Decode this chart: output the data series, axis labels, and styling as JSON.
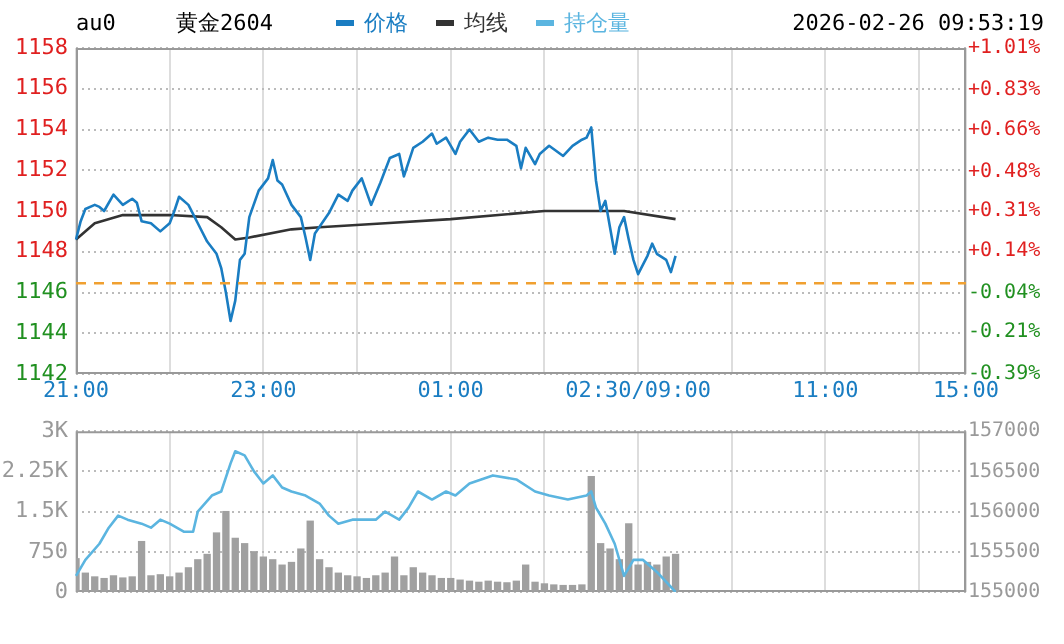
{
  "chart_data": [
    {
      "type": "line",
      "title": "黄金2604",
      "subtitle": "au0",
      "annotations": [
        "2026-02-26 09:53:19"
      ],
      "legend": "top",
      "grid": true,
      "marker": "none",
      "line_style": "solid",
      "categories": [
        "21:00",
        null,
        null,
        null,
        null,
        null,
        null,
        null,
        null,
        null,
        null,
        null,
        null,
        null,
        null,
        null,
        null,
        null,
        null,
        null,
        null,
        null,
        null,
        null,
        null,
        null,
        null,
        null,
        null,
        null,
        null,
        null,
        null,
        null,
        null,
        null,
        null,
        null,
        null,
        null,
        "23:00",
        null,
        null,
        null,
        null,
        null,
        null,
        null,
        null,
        null,
        null,
        null,
        null,
        null,
        null,
        null,
        null,
        null,
        null,
        null,
        null,
        null,
        null,
        null,
        null,
        null,
        null,
        null,
        null,
        null,
        null,
        null,
        null,
        null,
        null,
        null,
        null,
        null,
        null,
        null,
        "01:00",
        null,
        null,
        null,
        null,
        null,
        null,
        null,
        null,
        null,
        null,
        null,
        null,
        null,
        null,
        null,
        null,
        null,
        null,
        null,
        null,
        null,
        null,
        null,
        null,
        null,
        null,
        null,
        null,
        null,
        null,
        null,
        null,
        null,
        null,
        null,
        null,
        null,
        null,
        null,
        "02:30/09:00",
        null,
        null,
        null,
        null,
        null,
        null,
        null,
        null,
        null,
        null,
        null,
        null,
        null,
        null,
        null,
        null,
        null,
        null,
        null,
        null,
        null,
        null,
        null,
        null,
        null,
        null,
        null,
        null,
        null,
        null,
        null,
        null,
        null,
        null,
        null,
        null,
        null,
        null,
        null,
        "11:00",
        null,
        null,
        null,
        null,
        null,
        null,
        null,
        null,
        null,
        null,
        null,
        null,
        null,
        null,
        null,
        null,
        null,
        null,
        null,
        null,
        null,
        null,
        null,
        null,
        null,
        null,
        null,
        null,
        null,
        "15:00"
      ],
      "ylim": [
        1142,
        1158
      ],
      "yticks": [
        1142,
        1144,
        1146,
        1148,
        1150,
        1152,
        1154,
        1156,
        1158
      ],
      "y2lim": [
        -0.39,
        1.01
      ],
      "y2ticks": [
        {
          "value": -0.39,
          "label": "-0.39%"
        },
        {
          "value": -0.21,
          "label": "-0.21%"
        },
        {
          "value": -0.04,
          "label": "-0.04%"
        },
        {
          "value": 0.14,
          "label": "+0.14%"
        },
        {
          "value": 0.31,
          "label": "+0.31%"
        },
        {
          "value": 0.48,
          "label": "+0.48%"
        },
        {
          "value": 0.66,
          "label": "+0.66%"
        },
        {
          "value": 0.83,
          "label": "+0.83%"
        },
        {
          "value": 1.01,
          "label": "+1.01%"
        }
      ],
      "ref_lines": [
        {
          "axis": "y2",
          "value": 0,
          "color": "#f0a030",
          "line_style": "dashed"
        }
      ],
      "series": [
        {
          "name": "价格",
          "color": "#1a7dc2",
          "values": [
            1148.6,
            1149.5,
            1150.1,
            null,
            1150.3,
            1150.2,
            1150,
            null,
            1150.8,
            null,
            1150.3,
            null,
            1150.6,
            1150.4,
            1149.5,
            null,
            1149.4,
            null,
            1149,
            null,
            1149.4,
            1150,
            1150.7,
            null,
            1150.3,
            null,
            1149.4,
            null,
            1148.5,
            null,
            1147.9,
            1147.2,
            1146,
            1144.6,
            1145.6,
            1147.6,
            1147.9,
            1149.7,
            null,
            1151,
            null,
            1151.6,
            1152.5,
            1151.5,
            1151.3,
            null,
            1150.3,
            null,
            1149.7,
            1148.7,
            1147.6,
            1148.9,
            null,
            null,
            1149.9,
            null,
            1150.8,
            null,
            1150.5,
            1151,
            null,
            1151.6,
            null,
            1150.3,
            null,
            1151.4,
            null,
            1152.6,
            null,
            1152.8,
            1151.7,
            null,
            1153.1,
            null,
            1153.4,
            null,
            1153.8,
            1153.3,
            null,
            1153.6,
            null,
            1152.8,
            1153.4,
            null,
            1154,
            null,
            1153.4,
            null,
            1153.6,
            null,
            1153.5,
            null,
            1153.5,
            null,
            1153.2,
            1152.1,
            1153.1,
            null,
            1152.3,
            1152.8,
            null,
            1153.2,
            null,
            null,
            1152.7,
            null,
            1153.2,
            null,
            1153.5,
            1153.6,
            1154.1,
            1151.5,
            1150,
            1150.5,
            1149.2,
            1147.9,
            1149.2,
            1149.7,
            1148.6,
            1147.6,
            1146.9,
            null,
            1147.8,
            1148.4,
            1147.9,
            null,
            1147.6,
            1147,
            1147.8,
            null,
            null,
            null,
            null,
            null,
            null,
            null,
            null,
            null,
            null,
            null,
            null,
            null,
            null,
            null,
            null,
            null,
            null,
            null,
            null,
            null,
            null,
            null,
            null,
            null,
            null,
            null,
            null,
            null,
            null,
            null,
            null,
            null,
            null,
            null,
            null,
            null,
            null,
            null,
            null,
            null,
            null,
            null,
            null,
            null,
            null,
            null,
            null,
            null,
            null,
            null,
            null,
            null,
            null,
            null,
            null,
            null,
            null,
            null,
            null,
            null,
            null
          ]
        },
        {
          "name": "均线",
          "color": "#333333",
          "values": [
            1148.6,
            null,
            null,
            null,
            1149.4,
            null,
            null,
            null,
            null,
            null,
            1149.8,
            null,
            null,
            null,
            null,
            null,
            null,
            null,
            null,
            null,
            1149.8,
            null,
            null,
            null,
            null,
            null,
            null,
            null,
            1149.7,
            null,
            null,
            1149.2,
            null,
            null,
            1148.6,
            null,
            null,
            1148.7,
            null,
            null,
            null,
            null,
            null,
            null,
            null,
            null,
            1149.1,
            null,
            null,
            null,
            null,
            null,
            1149.2,
            null,
            null,
            null,
            null,
            null,
            null,
            null,
            null,
            null,
            null,
            null,
            null,
            null,
            1149.4,
            null,
            null,
            null,
            null,
            null,
            null,
            null,
            null,
            null,
            null,
            null,
            null,
            null,
            1149.6,
            null,
            null,
            null,
            null,
            null,
            null,
            null,
            null,
            null,
            null,
            null,
            null,
            null,
            null,
            null,
            null,
            null,
            null,
            null,
            1150,
            null,
            null,
            null,
            null,
            null,
            null,
            null,
            null,
            null,
            1150,
            null,
            null,
            null,
            null,
            null,
            null,
            1150,
            null,
            null,
            null,
            null,
            null,
            null,
            null,
            null,
            null,
            null,
            1149.6,
            null,
            null,
            null,
            null,
            null,
            null,
            null,
            null,
            null,
            null,
            null,
            null,
            null,
            null,
            null,
            null,
            null,
            null,
            null,
            null,
            null,
            null,
            null,
            null,
            null,
            null,
            null,
            null,
            null,
            null,
            null,
            null,
            null,
            null,
            null,
            null,
            null,
            null,
            null,
            null,
            null,
            null,
            null,
            null,
            null,
            null,
            null,
            null,
            null,
            null,
            null,
            null,
            null,
            null,
            null,
            null,
            null,
            null,
            null,
            null,
            null,
            null
          ]
        }
      ]
    },
    {
      "type": "bar",
      "legend": "top",
      "grid": true,
      "marker": "none",
      "line_style": "solid",
      "categories": [
        null,
        null,
        null,
        null,
        null,
        null,
        null,
        null,
        null,
        null,
        null,
        null,
        null,
        null,
        null,
        null,
        null,
        null,
        null,
        null,
        null,
        null,
        null,
        null,
        null,
        null,
        null,
        null,
        null,
        null,
        null,
        null,
        null,
        null,
        null,
        null,
        null,
        null,
        null,
        null,
        null,
        null,
        null,
        null,
        null,
        null,
        null,
        null,
        null,
        null,
        null,
        null,
        null,
        null,
        null,
        null,
        null,
        null,
        null,
        null,
        null,
        null,
        null,
        null,
        null,
        null,
        null,
        null,
        null,
        null,
        null,
        null,
        null,
        null,
        null,
        null,
        null,
        null,
        null,
        null,
        null,
        null,
        null,
        null,
        null,
        null,
        null,
        null,
        null,
        null,
        null,
        null,
        null,
        null,
        null,
        null,
        null,
        null,
        null,
        null,
        null,
        null,
        null,
        null,
        null,
        null,
        null,
        null,
        null,
        null,
        null,
        null,
        null,
        null,
        null,
        null,
        null,
        null,
        null,
        null,
        null,
        null,
        null,
        null,
        null,
        null,
        null,
        null,
        null,
        null,
        null,
        null,
        null,
        null,
        null,
        null,
        null,
        null,
        null,
        null,
        null,
        null,
        null,
        null,
        null,
        null,
        null,
        null,
        null,
        null,
        null,
        null,
        null,
        null,
        null,
        null,
        null,
        null,
        null,
        null,
        null,
        null,
        null,
        null,
        null,
        null,
        null,
        null,
        null,
        null,
        null,
        null,
        null,
        null,
        null,
        null,
        null,
        null,
        null,
        null,
        null,
        null,
        null,
        null,
        null,
        null,
        null,
        null,
        null,
        null,
        null
      ],
      "ylim": [
        0,
        3000
      ],
      "yticks": [
        0,
        750,
        {
          "value": 1500,
          "label": "1.5K"
        },
        {
          "value": 2250,
          "label": "2.25K"
        },
        {
          "value": 3000,
          "label": "3K"
        }
      ],
      "y2lim": [
        155000,
        157000
      ],
      "y2ticks": [
        155000,
        155500,
        156000,
        156500,
        157000
      ],
      "series": [
        {
          "color": "#a0a0a0",
          "values": [
            620,
            null,
            350,
            null,
            280,
            null,
            250,
            null,
            300,
            null,
            260,
            null,
            280,
            null,
            940,
            null,
            300,
            null,
            320,
            null,
            280,
            null,
            350,
            null,
            450,
            null,
            600,
            null,
            700,
            null,
            1100,
            null,
            1500,
            null,
            1000,
            null,
            900,
            null,
            750,
            null,
            650,
            null,
            600,
            null,
            500,
            null,
            550,
            null,
            800,
            null,
            1320,
            null,
            600,
            null,
            450,
            null,
            350,
            null,
            300,
            null,
            280,
            null,
            250,
            null,
            300,
            null,
            350,
            null,
            650,
            null,
            300,
            null,
            450,
            null,
            350,
            null,
            300,
            null,
            250,
            null,
            250,
            null,
            220,
            null,
            200,
            null,
            180,
            null,
            200,
            null,
            180,
            null,
            170,
            null,
            200,
            null,
            500,
            null,
            180,
            null,
            150,
            null,
            130,
            null,
            120,
            null,
            120,
            null,
            130,
            null,
            2150,
            null,
            900,
            null,
            800,
            null,
            600,
            null,
            1270,
            null,
            500,
            null,
            550,
            null,
            500,
            null,
            650,
            null,
            700,
            null,
            null,
            null,
            null,
            null,
            null,
            null,
            null,
            null,
            null,
            null,
            null,
            null,
            null,
            null,
            null,
            null,
            null,
            null,
            null,
            null,
            null,
            null,
            null,
            null,
            null,
            null,
            null,
            null,
            null,
            null,
            null,
            null,
            null,
            null,
            null,
            null,
            null,
            null,
            null,
            null,
            null,
            null,
            null,
            null,
            null,
            null,
            null,
            null,
            null,
            null,
            null,
            null,
            null,
            null,
            null,
            null,
            null,
            null,
            null,
            null,
            null
          ]
        },
        {
          "type": "line",
          "axis": "y2",
          "name": "持仓量",
          "color": "#5bb5e0",
          "values": [
            155200,
            null,
            155400,
            null,
            null,
            155600,
            null,
            155800,
            null,
            155950,
            null,
            155900,
            null,
            null,
            155850,
            null,
            155800,
            null,
            155900,
            null,
            155850,
            null,
            null,
            155750,
            null,
            155750,
            156000,
            null,
            null,
            156200,
            null,
            156250,
            null,
            156600,
            156750,
            null,
            156700,
            null,
            156500,
            null,
            156350,
            null,
            156450,
            null,
            156300,
            null,
            156250,
            null,
            null,
            156200,
            null,
            null,
            156100,
            null,
            155950,
            null,
            155850,
            null,
            null,
            155900,
            null,
            null,
            null,
            null,
            155900,
            null,
            156000,
            null,
            null,
            155900,
            null,
            156050,
            null,
            156250,
            null,
            null,
            156150,
            null,
            null,
            156250,
            null,
            156200,
            null,
            null,
            156350,
            null,
            null,
            null,
            null,
            156450,
            null,
            null,
            null,
            null,
            156400,
            null,
            null,
            null,
            156250,
            null,
            null,
            156200,
            null,
            null,
            null,
            156150,
            null,
            null,
            null,
            156200,
            156250,
            156050,
            null,
            155850,
            null,
            155600,
            null,
            155200,
            null,
            155400,
            null,
            155400,
            null,
            null,
            155250,
            null,
            null,
            null,
            155000,
            null,
            null,
            null,
            null,
            null,
            null,
            null,
            null,
            null,
            null,
            null,
            null,
            null,
            null,
            null,
            null,
            null,
            null,
            null,
            null,
            null,
            null,
            null,
            null,
            null,
            null,
            null,
            null,
            null,
            null,
            null,
            null,
            null,
            null,
            null,
            null,
            null,
            null,
            null,
            null,
            null,
            null,
            null,
            null,
            null,
            null,
            null,
            null,
            null,
            null,
            null,
            null,
            null,
            null,
            null,
            null,
            null,
            null,
            null,
            null,
            null,
            null
          ]
        }
      ]
    }
  ]
}
